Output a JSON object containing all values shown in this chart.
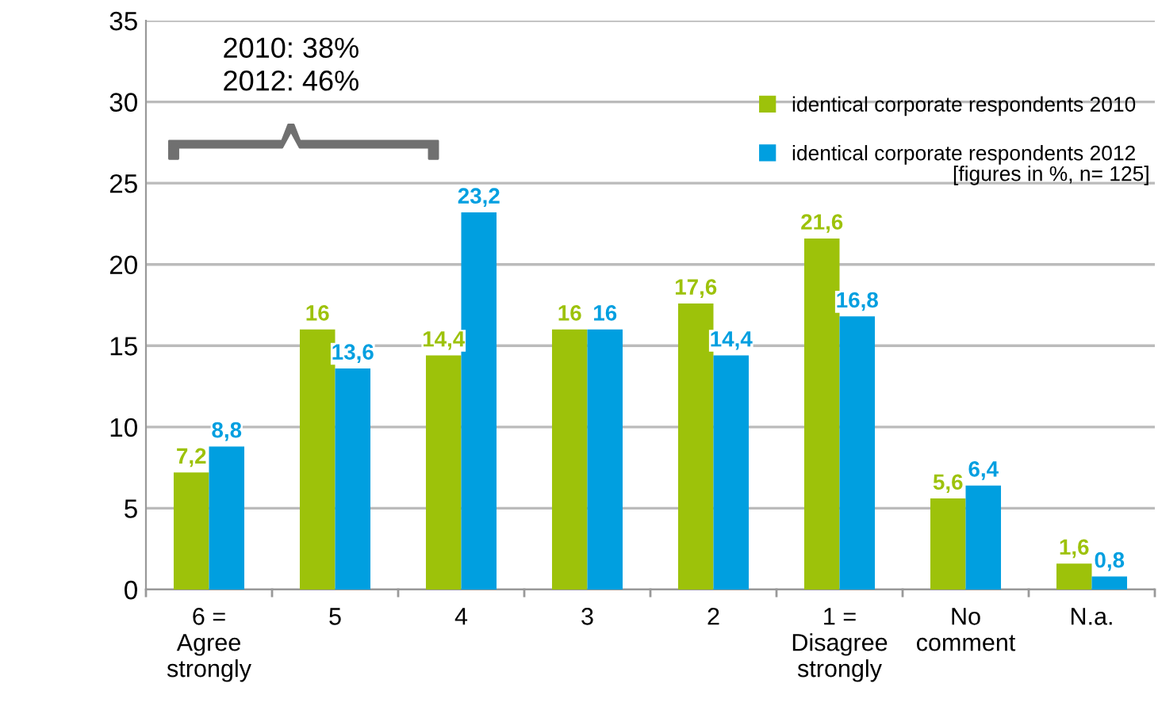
{
  "chart_data": {
    "type": "bar",
    "categories": [
      "6 =\nAgree\nstrongly",
      "5",
      "4",
      "3",
      "2",
      "1 =\nDisagree\nstrongly",
      "No\ncomment",
      "N.a."
    ],
    "series": [
      {
        "name": "identical corporate respondents 2010",
        "color": "#9dc20a",
        "values": [
          7.2,
          16,
          14.4,
          16,
          17.6,
          21.6,
          5.6,
          1.6
        ],
        "value_labels": [
          "7,2",
          "16",
          "14,4",
          "16",
          "17,6",
          "21,6",
          "5,6",
          "1,6"
        ]
      },
      {
        "name": "identical corporate respondents 2012",
        "color": "#009fe0",
        "values": [
          8.8,
          13.6,
          23.2,
          16,
          14.4,
          16.8,
          6.4,
          0.8
        ],
        "value_labels": [
          "8,8",
          "13,6",
          "23,2",
          "16",
          "14,4",
          "16,8",
          "6,4",
          "0,8"
        ]
      }
    ],
    "ylim": [
      0,
      35
    ],
    "yticks": [
      0,
      5,
      10,
      15,
      20,
      25,
      30,
      35
    ],
    "grid": "y",
    "legend": "top right",
    "annotations": [
      "2010: 38%\n2012: 46%",
      "[figures in %, n= 125]"
    ]
  }
}
